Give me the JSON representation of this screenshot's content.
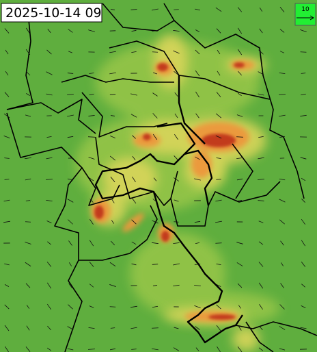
{
  "map": {
    "timestamp": "2025-10-14 09",
    "wind_legend": {
      "label": "10"
    }
  }
}
